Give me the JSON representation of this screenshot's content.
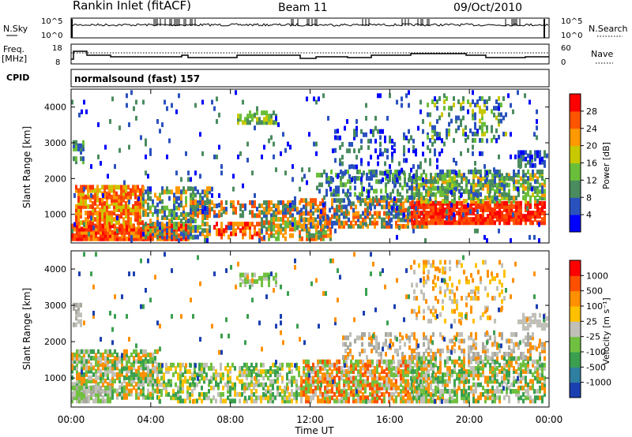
{
  "header": {
    "station": "Rankin Inlet (fitACF)",
    "beam": "Beam 11",
    "date": "09/Oct/2010"
  },
  "noise_panel": {
    "left_label": "N.Sky",
    "right_label": "N.Search",
    "left_ticks": [
      "10^5",
      "10^0"
    ],
    "right_ticks": [
      "10^5",
      "10^0"
    ]
  },
  "freq_panel": {
    "left_label": "Freq.",
    "left_unit": "[MHz]",
    "left_ticks": [
      "18",
      "8"
    ],
    "right_label": "Nave",
    "right_ticks": [
      "60",
      "0"
    ]
  },
  "cpid_panel": {
    "label": "CPID",
    "program": "normalsound (fast) 157"
  },
  "chart_data": [
    {
      "type": "heatmap",
      "quantity": "power",
      "ylabel": "Slant Range [km]",
      "xlabel": "Time UT",
      "x_ticks": [
        "00:00",
        "04:00",
        "08:00",
        "12:00",
        "16:00",
        "20:00",
        "00:00"
      ],
      "ylim": [
        200,
        4500
      ],
      "y_ticks": [
        1000,
        2000,
        3000,
        4000
      ],
      "colorbar": {
        "label": "Power [dB]",
        "ticks": [
          "4",
          "8",
          "12",
          "16",
          "20",
          "24",
          "28"
        ],
        "colors": [
          "#0000ff",
          "#2a52be",
          "#4a8c5f",
          "#6abf3a",
          "#c8c800",
          "#ff9900",
          "#ff5500",
          "#ff0000"
        ]
      }
    },
    {
      "type": "heatmap",
      "quantity": "velocity",
      "ylabel": "Slant Range [km]",
      "xlabel": "Time UT",
      "x_ticks": [
        "00:00",
        "04:00",
        "08:00",
        "12:00",
        "16:00",
        "20:00",
        "00:00"
      ],
      "ylim": [
        200,
        4500
      ],
      "y_ticks": [
        1000,
        2000,
        3000,
        4000
      ],
      "colorbar": {
        "label": "Velocity [m s⁻¹]",
        "ticks": [
          "1000",
          "500",
          "100",
          "25",
          "-25",
          "-100",
          "-500",
          "-1000"
        ],
        "colors": [
          "#1a3fb0",
          "#2f7fa0",
          "#3aa050",
          "#70c040",
          "#c0c0b8",
          "#ffc000",
          "#ff9000",
          "#ff5000",
          "#ff0000"
        ]
      }
    }
  ],
  "time_axis": {
    "ticks": [
      "00:00",
      "04:00",
      "08:00",
      "12:00",
      "16:00",
      "20:00",
      "00:00"
    ],
    "label": "Time UT"
  }
}
